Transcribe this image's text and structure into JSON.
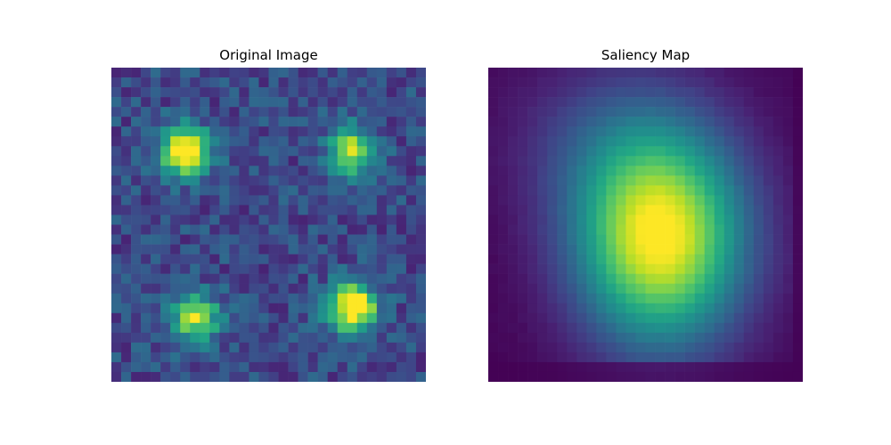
{
  "chart_data": [
    {
      "type": "heatmap",
      "title": "Original Image",
      "grid": false,
      "axes": "off",
      "colormap": "viridis",
      "rows": 32,
      "cols": 32,
      "peaks": [
        {
          "row": 8,
          "col": 7,
          "value": 1.0
        },
        {
          "row": 8,
          "col": 24,
          "value": 0.72
        },
        {
          "row": 25,
          "col": 8,
          "value": 0.78
        },
        {
          "row": 24,
          "col": 24,
          "value": 0.98
        }
      ],
      "background_range": [
        0.1,
        0.35
      ]
    },
    {
      "type": "heatmap",
      "title": "Saliency Map",
      "grid": false,
      "axes": "off",
      "colormap": "viridis",
      "rows": 32,
      "cols": 32,
      "peaks": [
        {
          "row": 17,
          "col": 17,
          "value": 1.0
        }
      ],
      "background_range": [
        0.0,
        0.05
      ]
    }
  ],
  "colors": {
    "viridis_low": "#440154",
    "viridis_mid": "#21918c",
    "viridis_high": "#fde725"
  }
}
